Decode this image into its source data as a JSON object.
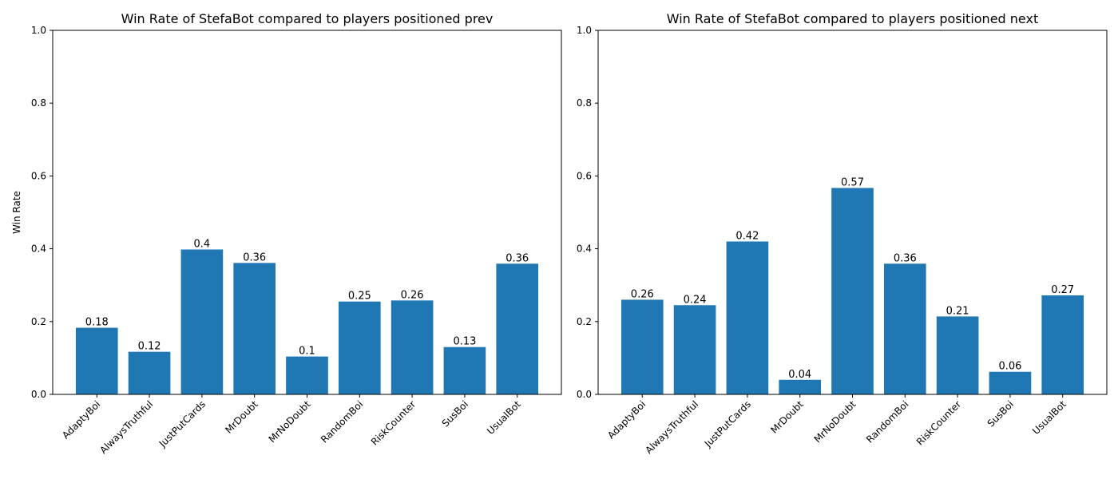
{
  "colors": {
    "bar": "#1f77b4",
    "axis": "#000000",
    "background": "#ffffff"
  },
  "chart_data": [
    {
      "type": "bar",
      "title": "Win Rate of StefaBot compared to players positioned prev",
      "xlabel": "",
      "ylabel": "Win Rate",
      "ylim": [
        0,
        1.0
      ],
      "yticks": [
        "0.0",
        "0.2",
        "0.4",
        "0.6",
        "0.8",
        "1.0"
      ],
      "grid": false,
      "categories": [
        "AdaptyBoi",
        "AlwaysTruthful",
        "JustPutCards",
        "MrDoubt",
        "MrNoDoubt",
        "RandomBoi",
        "RiskCounter",
        "SusBoi",
        "UsualBot"
      ],
      "values": [
        0.183,
        0.117,
        0.398,
        0.361,
        0.104,
        0.255,
        0.258,
        0.13,
        0.359
      ],
      "labels": [
        "0.18",
        "0.12",
        "0.4",
        "0.36",
        "0.1",
        "0.25",
        "0.26",
        "0.13",
        "0.36"
      ]
    },
    {
      "type": "bar",
      "title": "Win Rate of StefaBot compared to players positioned next",
      "xlabel": "",
      "ylabel": "",
      "ylim": [
        0,
        1.0
      ],
      "yticks": [
        "0.0",
        "0.2",
        "0.4",
        "0.6",
        "0.8",
        "1.0"
      ],
      "grid": false,
      "categories": [
        "AdaptyBoi",
        "AlwaysTruthful",
        "JustPutCards",
        "MrDoubt",
        "MrNoDoubt",
        "RandomBoi",
        "RiskCounter",
        "SusBoi",
        "UsualBot"
      ],
      "values": [
        0.26,
        0.245,
        0.42,
        0.04,
        0.567,
        0.359,
        0.214,
        0.062,
        0.272
      ],
      "labels": [
        "0.26",
        "0.24",
        "0.42",
        "0.04",
        "0.57",
        "0.36",
        "0.21",
        "0.06",
        "0.27"
      ]
    }
  ]
}
